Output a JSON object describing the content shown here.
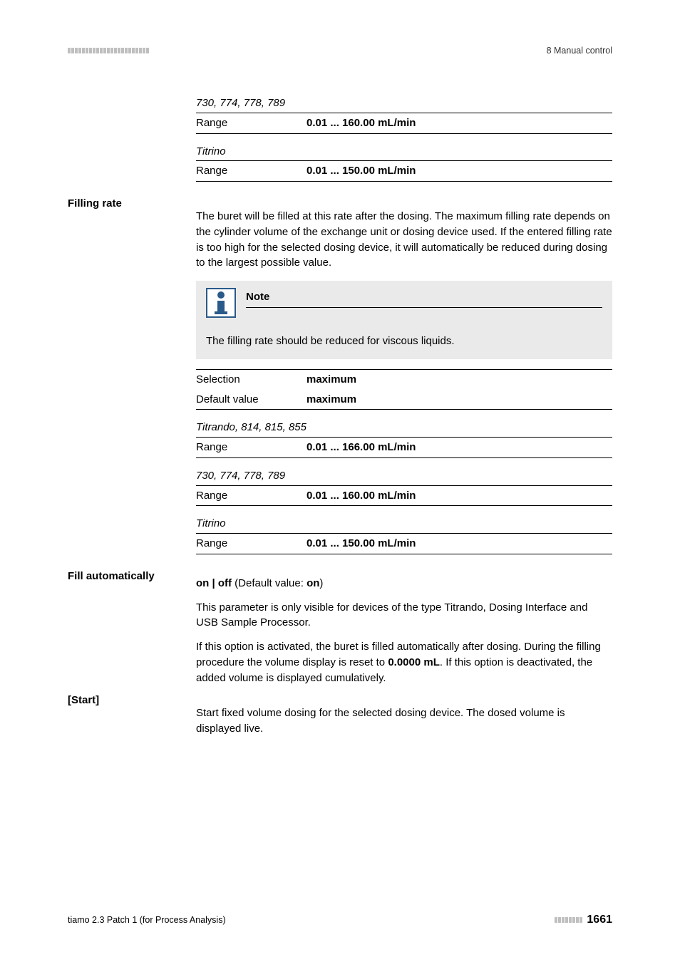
{
  "header": {
    "section_label": "8 Manual control"
  },
  "blocks": {
    "group1": {
      "heading": "730, 774, 778, 789",
      "row": {
        "label": "Range",
        "value": "0.01 ... 160.00 mL/min"
      }
    },
    "titrino1": {
      "heading": "Titrino",
      "row": {
        "label": "Range",
        "value": "0.01 ... 150.00 mL/min"
      }
    },
    "filling_rate": {
      "label": "Filling rate",
      "body": "The buret will be filled at this rate after the dosing. The maximum filling rate depends on the cylinder volume of the exchange unit or dosing device used. If the entered filling rate is too high for the selected dosing device, it will automatically be reduced during dosing to the largest possible value.",
      "note_title": "Note",
      "note_body": "The filling rate should be reduced for viscous liquids.",
      "sel_row": {
        "label": "Selection",
        "value": "maximum"
      },
      "def_row": {
        "label": "Default value",
        "value": "maximum"
      },
      "titrando": {
        "heading": "Titrando, 814, 815, 855",
        "row": {
          "label": "Range",
          "value": "0.01 ... 166.00 mL/min"
        }
      },
      "group2": {
        "heading": "730, 774, 778, 789",
        "row": {
          "label": "Range",
          "value": "0.01 ... 160.00 mL/min"
        }
      },
      "titrino2": {
        "heading": "Titrino",
        "row": {
          "label": "Range",
          "value": "0.01 ... 150.00 mL/min"
        }
      }
    },
    "fill_auto": {
      "label": "Fill automatically",
      "line1_a": "on | off",
      "line1_b": " (Default value: ",
      "line1_c": "on",
      "line1_d": ")",
      "para1": "This parameter is only visible for devices of the type Titrando, Dosing Interface and USB Sample Processor.",
      "para2_a": "If this option is activated, the buret is filled automatically after dosing. During the filling procedure the volume display is reset to ",
      "para2_b": "0.0000 mL",
      "para2_c": ". If this option is deactivated, the added volume is displayed cumulatively."
    },
    "start": {
      "label": "[Start]",
      "body": "Start fixed volume dosing for the selected dosing device. The dosed volume is displayed live."
    }
  },
  "footer": {
    "left": "tiamo 2.3 Patch 1 (for Process Analysis)",
    "page": "1661"
  },
  "colors": {
    "bar": "#bfbfbf",
    "note_bg": "#eaeaea",
    "note_icon": "#2a5a8a"
  }
}
